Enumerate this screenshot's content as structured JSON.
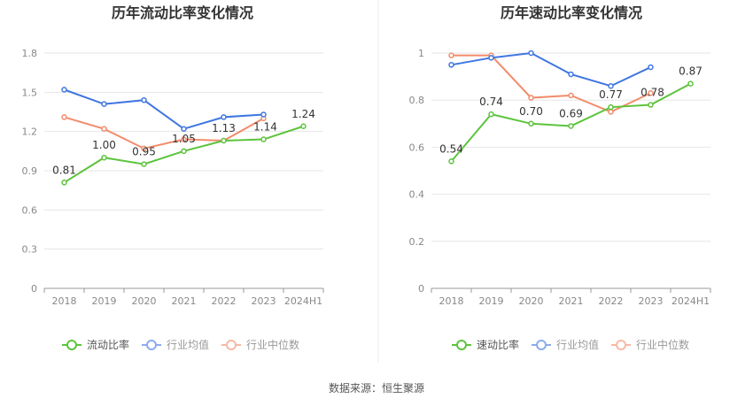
{
  "source_label": "数据来源：恒生聚源",
  "chart_data": [
    {
      "type": "line",
      "title": "历年流动比率变化情况",
      "categories": [
        "2018",
        "2019",
        "2020",
        "2021",
        "2022",
        "2023",
        "2024H1"
      ],
      "ylim": [
        0,
        1.8
      ],
      "yticks": [
        0,
        0.3,
        0.6,
        0.9,
        1.2,
        1.5,
        1.8
      ],
      "ytick_labels": [
        "0",
        "0.3",
        "0.6",
        "0.9",
        "1.2",
        "1.5",
        "1.8"
      ],
      "series": [
        {
          "name": "流动比率",
          "color": "#5cc43b",
          "values": [
            0.81,
            1.0,
            0.95,
            1.05,
            1.13,
            1.14,
            1.24
          ],
          "labels": [
            "0.81",
            "1.00",
            "0.95",
            "1.05",
            "1.13",
            "1.14",
            "1.24"
          ]
        },
        {
          "name": "行业均值",
          "color": "#3f76e0",
          "values": [
            1.52,
            1.41,
            1.44,
            1.22,
            1.31,
            1.33,
            null
          ]
        },
        {
          "name": "行业中位数",
          "color": "#f28c6b",
          "values": [
            1.31,
            1.22,
            1.07,
            1.14,
            1.13,
            1.3,
            null
          ]
        }
      ]
    },
    {
      "type": "line",
      "title": "历年速动比率变化情况",
      "categories": [
        "2018",
        "2019",
        "2020",
        "2021",
        "2022",
        "2023",
        "2024H1"
      ],
      "ylim": [
        0,
        1.0
      ],
      "yticks": [
        0,
        0.2,
        0.4,
        0.6,
        0.8,
        1.0
      ],
      "ytick_labels": [
        "0",
        "0.2",
        "0.4",
        "0.6",
        "0.8",
        "1"
      ],
      "series": [
        {
          "name": "速动比率",
          "color": "#5cc43b",
          "values": [
            0.54,
            0.74,
            0.7,
            0.69,
            0.77,
            0.78,
            0.87
          ],
          "labels": [
            "0.54",
            "0.74",
            "0.70",
            "0.69",
            "0.77",
            "0.78",
            "0.87"
          ]
        },
        {
          "name": "行业均值",
          "color": "#3f76e0",
          "values": [
            0.95,
            0.98,
            1.0,
            0.91,
            0.86,
            0.94,
            null
          ]
        },
        {
          "name": "行业中位数",
          "color": "#f28c6b",
          "values": [
            0.99,
            0.99,
            0.81,
            0.82,
            0.75,
            0.83,
            null
          ]
        }
      ]
    }
  ]
}
